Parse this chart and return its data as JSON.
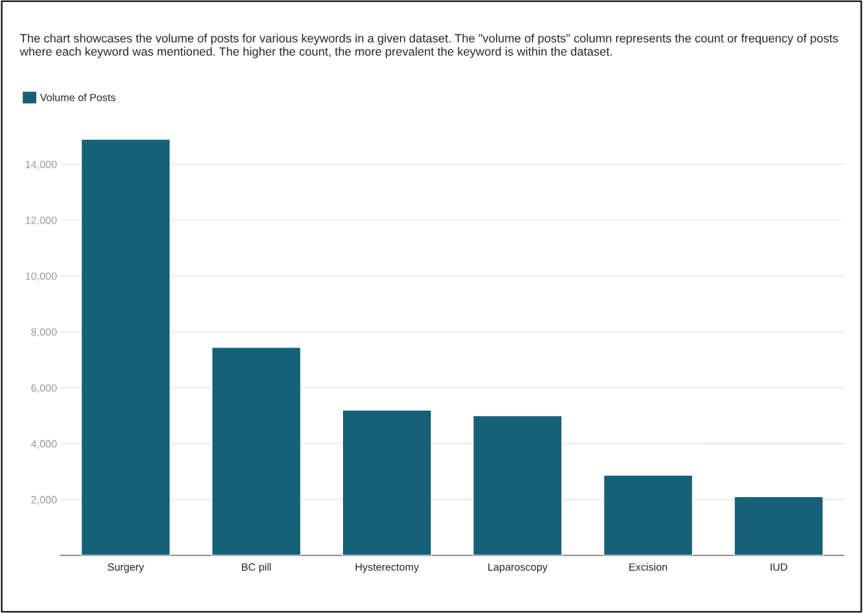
{
  "chart_data": {
    "type": "bar",
    "title": "The chart showcases the volume of posts for various keywords in a given dataset. The \"volume of posts\" column represents the count or frequency of posts where each keyword was mentioned. The higher the count, the more prevalent the keyword is within the dataset.",
    "categories": [
      "Surgery",
      "BC pill",
      "Hysterectomy",
      "Laparoscopy",
      "Excision",
      "IUD"
    ],
    "series": [
      {
        "name": "Volume of Posts",
        "color": "#17607a",
        "values": [
          14900,
          7450,
          5200,
          5000,
          2870,
          2100
        ]
      }
    ],
    "ylim": [
      0,
      14900
    ],
    "yticks": [
      {
        "value": 0,
        "label": null
      },
      {
        "value": 2000,
        "label": "2,000"
      },
      {
        "value": 4000,
        "label": "4,000"
      },
      {
        "value": 6000,
        "label": "6,000"
      },
      {
        "value": 8000,
        "label": "8,000"
      },
      {
        "value": 10000,
        "label": "10,000"
      },
      {
        "value": 12000,
        "label": "12,000"
      },
      {
        "value": 14000,
        "label": "14,000"
      }
    ],
    "grid": "y",
    "legend": "top left"
  }
}
